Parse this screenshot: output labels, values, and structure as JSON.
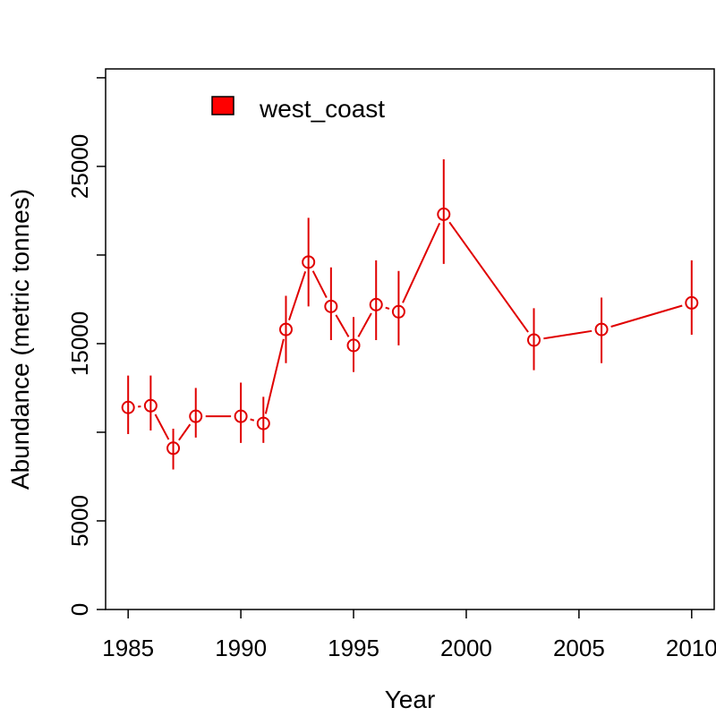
{
  "chart_data": {
    "type": "line",
    "xlabel": "Year",
    "ylabel": "Abundance (metric tonnes)",
    "xlim": [
      1984,
      2011
    ],
    "ylim": [
      0,
      30500
    ],
    "x_ticks": [
      "1985",
      "1990",
      "1995",
      "2000",
      "2005",
      "2010"
    ],
    "y_ticks": [
      "0",
      "5000",
      "15000",
      "25000"
    ],
    "y_minor_ticks": [
      10000,
      20000,
      30000
    ],
    "legend": {
      "position": "top-left",
      "entries": [
        "west_coast"
      ]
    },
    "colors": {
      "series": "#e00000",
      "legend_fill": "#ff0000"
    },
    "series": [
      {
        "name": "west_coast",
        "x": [
          1985,
          1986,
          1987,
          1988,
          1990,
          1991,
          1992,
          1993,
          1994,
          1995,
          1996,
          1997,
          1999,
          2003,
          2006,
          2010
        ],
        "values": [
          11400,
          11500,
          9100,
          10900,
          10900,
          10500,
          15800,
          19600,
          17100,
          14900,
          17200,
          16800,
          22300,
          15200,
          15800,
          17300
        ],
        "lower": [
          9900,
          10100,
          7900,
          9700,
          9400,
          9400,
          13900,
          17100,
          15200,
          13400,
          15200,
          14900,
          19500,
          13500,
          13900,
          15500
        ],
        "upper": [
          13200,
          13200,
          10200,
          12500,
          12800,
          12000,
          17700,
          22100,
          19300,
          16500,
          19700,
          19100,
          25400,
          17000,
          17600,
          19700
        ]
      }
    ]
  }
}
